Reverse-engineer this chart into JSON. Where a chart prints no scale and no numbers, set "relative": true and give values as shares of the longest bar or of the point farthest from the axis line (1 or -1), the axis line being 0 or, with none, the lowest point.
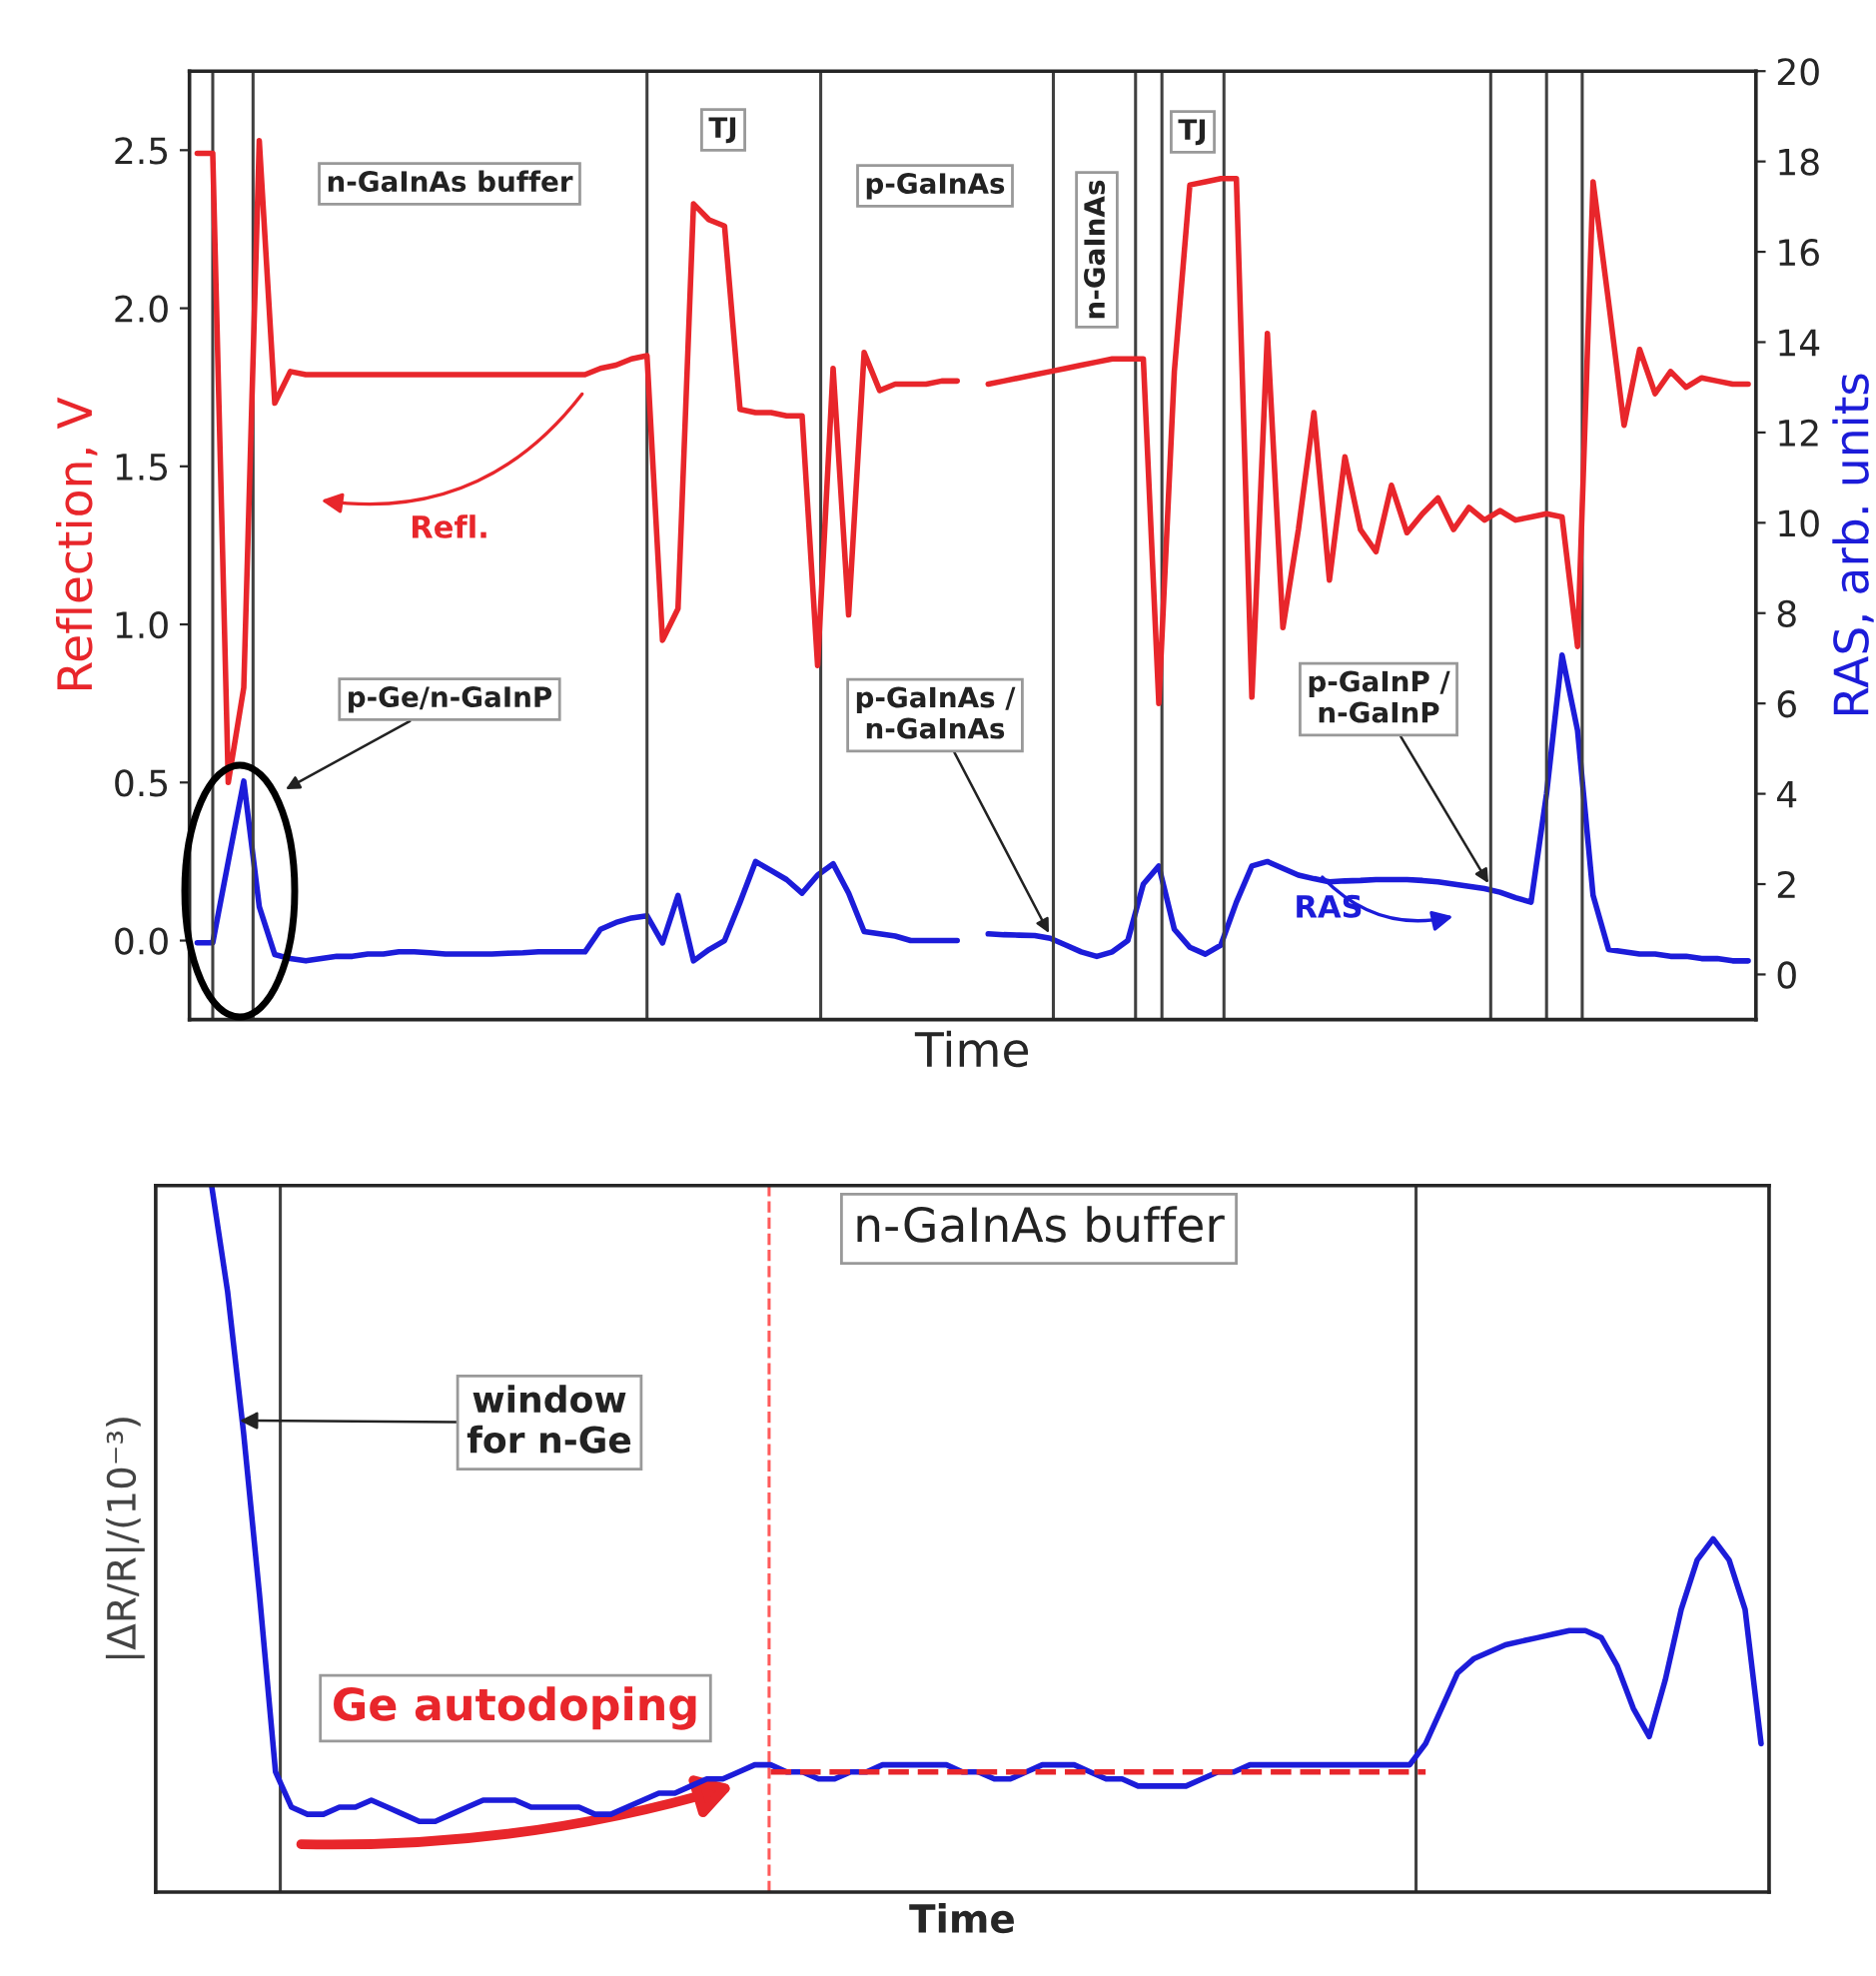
{
  "chart_data": [
    {
      "type": "line",
      "grid": "x",
      "xlabel": "Time",
      "ylabel": "Reflection, V",
      "y2label": "RAS, arb. units",
      "categories": [
        null,
        null,
        null,
        null,
        null,
        null,
        null,
        null,
        null,
        null,
        null,
        null,
        null,
        null,
        null,
        null,
        null,
        null,
        null,
        null,
        null,
        null,
        null,
        null,
        null,
        null,
        null,
        null,
        null,
        null,
        null,
        null,
        null,
        null,
        null,
        null,
        null,
        null,
        null,
        null,
        null,
        null,
        null,
        null,
        null,
        null,
        null,
        null,
        null,
        null,
        null,
        null,
        null,
        null,
        null,
        null,
        null,
        null,
        null,
        null,
        null,
        null,
        null,
        null,
        null,
        null,
        null,
        null,
        null,
        null,
        null,
        null,
        null,
        null,
        null,
        null,
        null,
        null,
        null,
        null,
        null,
        null,
        null,
        null,
        null,
        null,
        null,
        null,
        null,
        null,
        null,
        null,
        null,
        null,
        null,
        null,
        null,
        null,
        null,
        null,
        null
      ],
      "ylim": [
        -0.25,
        2.75
      ],
      "yticks": [
        {
          "value": 0,
          "label": "0.0"
        },
        {
          "value": 0.5,
          "label": "0.5"
        },
        {
          "value": 1,
          "label": "1.0"
        },
        {
          "value": 1.5,
          "label": "1.5"
        },
        {
          "value": 2,
          "label": "2.0"
        },
        {
          "value": 2.5,
          "label": "2.5"
        }
      ],
      "y2lim": [
        -1,
        20
      ],
      "y2ticks": [
        0,
        2,
        4,
        6,
        8,
        10,
        12,
        14,
        16,
        18,
        20
      ],
      "series": [
        {
          "color": "#e8262b",
          "values": [
            2.49,
            2.49,
            0.5,
            0.8,
            2.53,
            1.7,
            1.8,
            1.79,
            1.79,
            1.79,
            1.79,
            1.79,
            1.79,
            1.79,
            1.79,
            1.79,
            1.79,
            1.79,
            1.79,
            1.79,
            1.79,
            1.79,
            1.79,
            1.79,
            1.79,
            1.79,
            1.81,
            1.82,
            1.84,
            1.85,
            0.95,
            1.05,
            2.33,
            2.28,
            2.26,
            1.68,
            1.67,
            1.67,
            1.66,
            1.66,
            0.87,
            1.81,
            1.03,
            1.86,
            1.74,
            1.76,
            1.76,
            1.76,
            1.77,
            1.77,
            null,
            1.76,
            1.77,
            1.78,
            1.79,
            1.8,
            1.81,
            1.82,
            1.83,
            1.84,
            1.84,
            1.84,
            0.75,
            1.8,
            2.39,
            2.4,
            2.41,
            2.41,
            0.77,
            1.92,
            0.99,
            1.3,
            1.67,
            1.14,
            1.53,
            1.3,
            1.23,
            1.44,
            1.29,
            1.35,
            1.4,
            1.3,
            1.37,
            1.33,
            1.36,
            1.33,
            1.34,
            1.35,
            1.34,
            0.93,
            2.4,
            2.02,
            1.63,
            1.87,
            1.73,
            1.8,
            1.75,
            1.78,
            1.77,
            1.76,
            1.76
          ]
        },
        {
          "color": "#1c1cd9",
          "axis": "y2",
          "values": [
            0.7,
            0.7,
            2.5,
            4.28,
            1.5,
            0.44,
            0.35,
            0.3,
            0.35,
            0.4,
            0.4,
            0.45,
            0.45,
            0.5,
            0.5,
            0.48,
            0.45,
            0.45,
            0.45,
            0.45,
            0.47,
            0.48,
            0.5,
            0.5,
            0.5,
            0.5,
            1.0,
            1.15,
            1.25,
            1.3,
            0.7,
            1.75,
            0.3,
            0.55,
            0.75,
            1.6,
            2.5,
            2.3,
            2.1,
            1.8,
            2.2,
            2.45,
            1.8,
            0.95,
            0.9,
            0.85,
            0.75,
            0.75,
            0.75,
            0.75,
            null,
            0.9,
            0.88,
            0.87,
            0.86,
            0.8,
            0.65,
            0.5,
            0.4,
            0.5,
            0.75,
            2.0,
            2.4,
            1.0,
            0.6,
            0.45,
            0.65,
            1.6,
            2.4,
            2.5,
            2.35,
            2.2,
            2.12,
            2.05,
            2.07,
            2.08,
            2.1,
            2.1,
            2.1,
            2.08,
            2.05,
            2.0,
            1.95,
            1.9,
            1.82,
            1.7,
            1.6,
            4.0,
            7.07,
            5.4,
            1.75,
            0.55,
            0.5,
            0.45,
            0.45,
            0.4,
            0.4,
            0.35,
            0.35,
            0.3,
            0.3
          ]
        }
      ],
      "annotations": [
        "n-GaInAs buffer",
        "TJ",
        "p-GaInAs",
        "n-GaInAs",
        "TJ",
        "p-Ge/n-GaInP",
        "p-GaInAs /\nn-GaInAs",
        "p-GaInP /\nn-GaInP",
        "Refl.",
        "RAS"
      ]
    },
    {
      "type": "line",
      "grid": "x",
      "relative": true,
      "xlabel": "Time",
      "ylabel": "|ΔR/R|/(10⁻³)",
      "categories": [
        null,
        null,
        null,
        null,
        null,
        null,
        null,
        null,
        null,
        null,
        null,
        null,
        null,
        null,
        null,
        null,
        null,
        null,
        null,
        null,
        null,
        null,
        null,
        null,
        null,
        null,
        null,
        null,
        null,
        null,
        null,
        null,
        null,
        null,
        null,
        null,
        null,
        null,
        null,
        null,
        null,
        null,
        null,
        null,
        null,
        null,
        null,
        null,
        null,
        null,
        null,
        null,
        null,
        null,
        null,
        null,
        null,
        null,
        null,
        null,
        null,
        null,
        null,
        null,
        null,
        null,
        null,
        null,
        null,
        null,
        null,
        null,
        null,
        null,
        null,
        null,
        null,
        null,
        null,
        null,
        null,
        null,
        null,
        null,
        null,
        null,
        null,
        null,
        null,
        null,
        null,
        null,
        null,
        null,
        null,
        null,
        null,
        null,
        null,
        null,
        null
      ],
      "series": [
        {
          "color": "#1c1cd9",
          "values": [
            null,
            null,
            null,
            1.0,
            0.85,
            0.65,
            0.42,
            0.17,
            0.12,
            0.11,
            0.11,
            0.12,
            0.12,
            0.13,
            0.12,
            0.11,
            0.1,
            0.1,
            0.11,
            0.12,
            0.13,
            0.13,
            0.13,
            0.12,
            0.12,
            0.12,
            0.12,
            0.11,
            0.11,
            0.12,
            0.13,
            0.14,
            0.14,
            0.15,
            0.16,
            0.16,
            0.17,
            0.18,
            0.18,
            0.17,
            0.17,
            0.16,
            0.16,
            0.17,
            0.17,
            0.18,
            0.18,
            0.18,
            0.18,
            0.18,
            0.17,
            0.17,
            0.16,
            0.16,
            0.17,
            0.18,
            0.18,
            0.18,
            0.17,
            0.16,
            0.16,
            0.15,
            0.15,
            0.15,
            0.15,
            0.16,
            0.17,
            0.17,
            0.18,
            0.18,
            0.18,
            0.18,
            0.18,
            0.18,
            0.18,
            0.18,
            0.18,
            0.18,
            0.18,
            0.21,
            0.26,
            0.31,
            0.33,
            0.34,
            0.35,
            0.355,
            0.36,
            0.365,
            0.37,
            0.37,
            0.36,
            0.32,
            0.26,
            0.22,
            0.3,
            0.4,
            0.47,
            0.5,
            0.47,
            0.4,
            0.21
          ]
        },
        {
          "color": "#e8262b",
          "line_style": "dashed",
          "values": [
            null,
            null,
            null,
            null,
            null,
            null,
            null,
            null,
            null,
            null,
            null,
            null,
            null,
            null,
            null,
            null,
            null,
            null,
            null,
            null,
            null,
            null,
            null,
            null,
            null,
            null,
            null,
            null,
            null,
            null,
            null,
            null,
            null,
            null,
            null,
            null,
            null,
            null,
            0.17,
            0.17,
            0.17,
            0.17,
            0.17,
            0.17,
            0.17,
            0.17,
            0.17,
            0.17,
            0.17,
            0.17,
            0.17,
            0.17,
            0.17,
            0.17,
            0.17,
            0.17,
            0.17,
            0.17,
            0.17,
            0.17,
            0.17,
            0.17,
            0.17,
            0.17,
            0.17,
            0.17,
            0.17,
            0.17,
            0.17,
            0.17,
            0.17,
            0.17,
            0.17,
            0.17,
            0.17,
            0.17,
            0.17,
            0.17,
            0.17,
            0.17,
            null,
            null,
            null,
            null,
            null,
            null,
            null,
            null,
            null,
            null,
            null,
            null,
            null,
            null,
            null,
            null,
            null,
            null,
            null,
            null,
            null
          ]
        }
      ],
      "annotations": [
        "n-GaInAs buffer",
        "window\nfor n-Ge",
        "Ge autodoping"
      ]
    }
  ]
}
